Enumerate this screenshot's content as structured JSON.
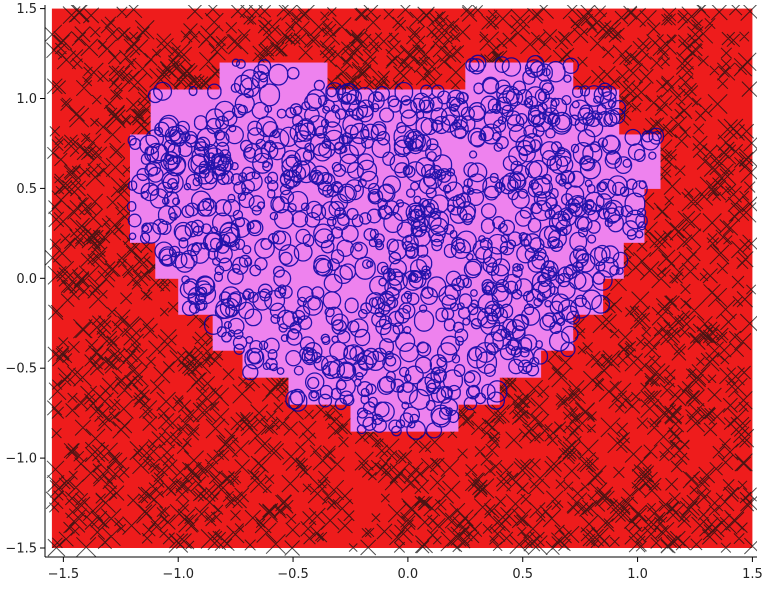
{
  "chart_data": {
    "type": "scatter",
    "title": "",
    "xlabel": "",
    "ylabel": "",
    "xlim": [
      -1.58,
      1.52
    ],
    "ylim": [
      -1.55,
      1.52
    ],
    "grid": false,
    "legend": "none",
    "x_ticks": [
      {
        "value": -1.5,
        "label": "−1.5"
      },
      {
        "value": -1.0,
        "label": "−1.0"
      },
      {
        "value": -0.5,
        "label": "−0.5"
      },
      {
        "value": 0.0,
        "label": "0.0"
      },
      {
        "value": 0.5,
        "label": "0.5"
      },
      {
        "value": 1.0,
        "label": "1.0"
      },
      {
        "value": 1.5,
        "label": "1.5"
      }
    ],
    "y_ticks": [
      {
        "value": -1.5,
        "label": "−1.5"
      },
      {
        "value": -1.0,
        "label": "−1.0"
      },
      {
        "value": -0.5,
        "label": "−0.5"
      },
      {
        "value": 0.0,
        "label": "0.0"
      },
      {
        "value": 0.5,
        "label": "0.5"
      },
      {
        "value": 1.0,
        "label": "1.0"
      },
      {
        "value": 1.5,
        "label": "1.5"
      }
    ],
    "sample_region": {
      "x": [
        -1.55,
        1.5
      ],
      "y": [
        -1.5,
        1.5
      ]
    },
    "series": [
      {
        "marker": "x",
        "color": "#111111",
        "background_color": "#ee1c1c",
        "region": "outside heart",
        "region_rows": [
          {
            "y": [
              1.2,
              1.5
            ],
            "x": [
              -1.55,
              1.5
            ]
          }
        ]
      },
      {
        "marker": "o",
        "edge_color": "#0000a0",
        "fill_color": "#ee82ee",
        "region": "inside heart",
        "region_rows": [
          {
            "y": [
              1.05,
              1.2
            ],
            "x": [
              -0.82,
              -0.35
            ]
          },
          {
            "y": [
              1.05,
              1.2
            ],
            "x": [
              0.25,
              0.72
            ]
          },
          {
            "y": [
              0.8,
              1.05
            ],
            "x": [
              -1.12,
              0.92
            ]
          },
          {
            "y": [
              0.5,
              0.8
            ],
            "x": [
              -1.21,
              1.1
            ]
          },
          {
            "y": [
              0.2,
              0.5
            ],
            "x": [
              -1.21,
              1.03
            ]
          },
          {
            "y": [
              0.0,
              0.2
            ],
            "x": [
              -1.1,
              0.94
            ]
          },
          {
            "y": [
              -0.2,
              0.0
            ],
            "x": [
              -1.0,
              0.85
            ]
          },
          {
            "y": [
              -0.4,
              -0.2
            ],
            "x": [
              -0.85,
              0.72
            ]
          },
          {
            "y": [
              -0.55,
              -0.4
            ],
            "x": [
              -0.72,
              0.58
            ]
          },
          {
            "y": [
              -0.7,
              -0.55
            ],
            "x": [
              -0.52,
              0.4
            ]
          },
          {
            "y": [
              -0.85,
              -0.7
            ],
            "x": [
              -0.25,
              0.22
            ]
          }
        ]
      }
    ]
  }
}
